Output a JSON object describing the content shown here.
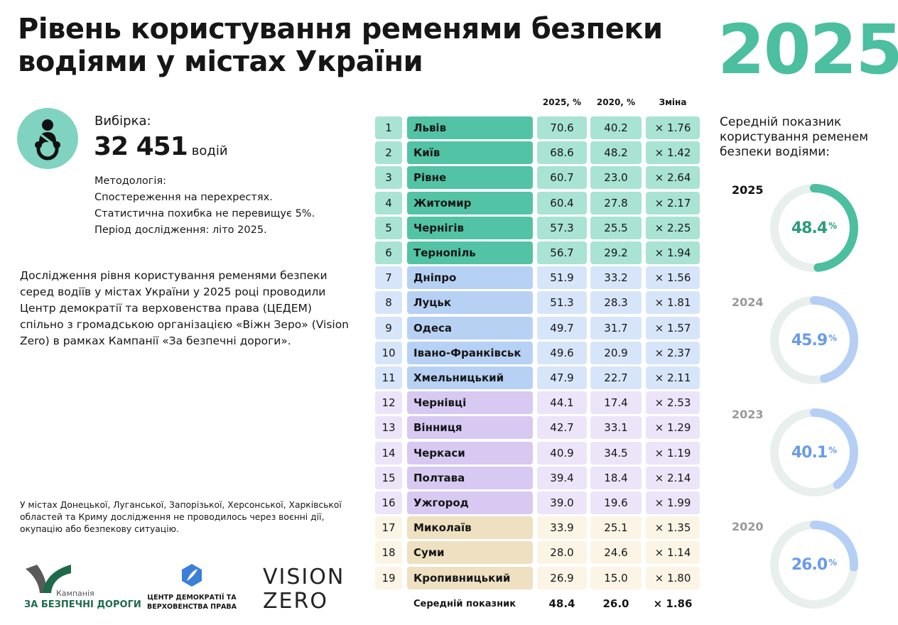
{
  "header": {
    "title": "Рівень користування ременями безпеки водіями у містах України",
    "year": "2025"
  },
  "sample": {
    "label": "Вибірка:",
    "count": "32 451",
    "unit": "водій"
  },
  "methodology": [
    "Методологія:",
    "Спостереження на перехрестях.",
    "Статистична похибка не перевищує 5%.",
    "Період дослідження: літо 2025."
  ],
  "description": "Дослідження рівня користування ременями безпеки серед водіїв у містах України у 2025 році проводили Центр демократії та верховенства права (ЦЕДЕМ) спільно з громадською організацією «Віжн Зеро» (Vision Zero) в рамках Кампанії «За безпечні дороги».",
  "footnote": "У містах Донецької, Луганської, Запорізької, Херсонської, Харківської областей та Криму дослідження не проводилось через воєнні дії, окупацію або безпекову ситуацію.",
  "logos": {
    "campaign_small": "Кампанія",
    "campaign": "ЗА БЕЗПЕЧНІ ДОРОГИ",
    "cedem": "ЦЕНТР ДЕМОКРАТІЇ ТА ВЕРХОВЕНСТВА ПРАВА",
    "vz1": "VISION",
    "vz2": "ZERO"
  },
  "colors": {
    "accent": "#4bbf9f",
    "green_city": "#52c3a5",
    "green_cell": "#a8e3d3",
    "blue_city": "#b7d1f5",
    "blue_cell": "#d7e5fa",
    "purple_city": "#d7c9f2",
    "purple_cell": "#ece4f9",
    "yellow_city": "#eee0c0",
    "yellow_cell": "#fcf5e6"
  },
  "chart_data": [
    {
      "type": "table",
      "columns": [
        "",
        "",
        "2025, %",
        "2020, %",
        "Зміна"
      ],
      "rows": [
        {
          "rank": "1",
          "city": "Львів",
          "v2025": "70.6",
          "v2020": "40.2",
          "change": "× 1.76",
          "group": "green"
        },
        {
          "rank": "2",
          "city": "Київ",
          "v2025": "68.6",
          "v2020": "48.2",
          "change": "× 1.42",
          "group": "green"
        },
        {
          "rank": "3",
          "city": "Рівне",
          "v2025": "60.7",
          "v2020": "23.0",
          "change": "× 2.64",
          "group": "green"
        },
        {
          "rank": "4",
          "city": "Житомир",
          "v2025": "60.4",
          "v2020": "27.8",
          "change": "× 2.17",
          "group": "green"
        },
        {
          "rank": "5",
          "city": "Чернігів",
          "v2025": "57.3",
          "v2020": "25.5",
          "change": "× 2.25",
          "group": "green"
        },
        {
          "rank": "6",
          "city": "Тернопіль",
          "v2025": "56.7",
          "v2020": "29.2",
          "change": "× 1.94",
          "group": "green"
        },
        {
          "rank": "7",
          "city": "Дніпро",
          "v2025": "51.9",
          "v2020": "33.2",
          "change": "× 1.56",
          "group": "blue"
        },
        {
          "rank": "8",
          "city": "Луцьк",
          "v2025": "51.3",
          "v2020": "28.3",
          "change": "× 1.81",
          "group": "blue"
        },
        {
          "rank": "9",
          "city": "Одеса",
          "v2025": "49.7",
          "v2020": "31.7",
          "change": "× 1.57",
          "group": "blue"
        },
        {
          "rank": "10",
          "city": "Івано-Франківськ",
          "v2025": "49.6",
          "v2020": "20.9",
          "change": "× 2.37",
          "group": "blue"
        },
        {
          "rank": "11",
          "city": "Хмельницький",
          "v2025": "47.9",
          "v2020": "22.7",
          "change": "× 2.11",
          "group": "blue"
        },
        {
          "rank": "12",
          "city": "Чернівці",
          "v2025": "44.1",
          "v2020": "17.4",
          "change": "× 2.53",
          "group": "purple"
        },
        {
          "rank": "13",
          "city": "Вінниця",
          "v2025": "42.7",
          "v2020": "33.1",
          "change": "× 1.29",
          "group": "purple"
        },
        {
          "rank": "14",
          "city": "Черкаси",
          "v2025": "40.9",
          "v2020": "34.5",
          "change": "× 1.19",
          "group": "purple"
        },
        {
          "rank": "15",
          "city": "Полтава",
          "v2025": "39.4",
          "v2020": "18.4",
          "change": "× 2.14",
          "group": "purple"
        },
        {
          "rank": "16",
          "city": "Ужгород",
          "v2025": "39.0",
          "v2020": "19.6",
          "change": "× 1.99",
          "group": "purple"
        },
        {
          "rank": "17",
          "city": "Миколаїв",
          "v2025": "33.9",
          "v2020": "25.1",
          "change": "× 1.35",
          "group": "yellow"
        },
        {
          "rank": "18",
          "city": "Суми",
          "v2025": "28.0",
          "v2020": "24.6",
          "change": "× 1.14",
          "group": "yellow"
        },
        {
          "rank": "19",
          "city": "Кропивницький",
          "v2025": "26.9",
          "v2020": "15.0",
          "change": "× 1.80",
          "group": "yellow"
        }
      ],
      "average": {
        "label": "Середній показник",
        "v2025": "48.4",
        "v2020": "26.0",
        "change": "× 1.86"
      }
    },
    {
      "type": "pie",
      "title": "Середній показник користування ременем безпеки водіями:",
      "series": [
        {
          "year": "2025",
          "value": 48.4,
          "label": "48.4",
          "color": "#4bbf9f",
          "text_color": "#2a9d7c"
        },
        {
          "year": "2024",
          "value": 45.9,
          "label": "45.9",
          "color": "#b5cff5",
          "text_color": "#6a9ce8"
        },
        {
          "year": "2023",
          "value": 40.1,
          "label": "40.1",
          "color": "#b5cff5",
          "text_color": "#6a9ce8"
        },
        {
          "year": "2020",
          "value": 26.0,
          "label": "26.0",
          "color": "#b5cff5",
          "text_color": "#6a9ce8"
        }
      ],
      "unit": "%"
    }
  ]
}
